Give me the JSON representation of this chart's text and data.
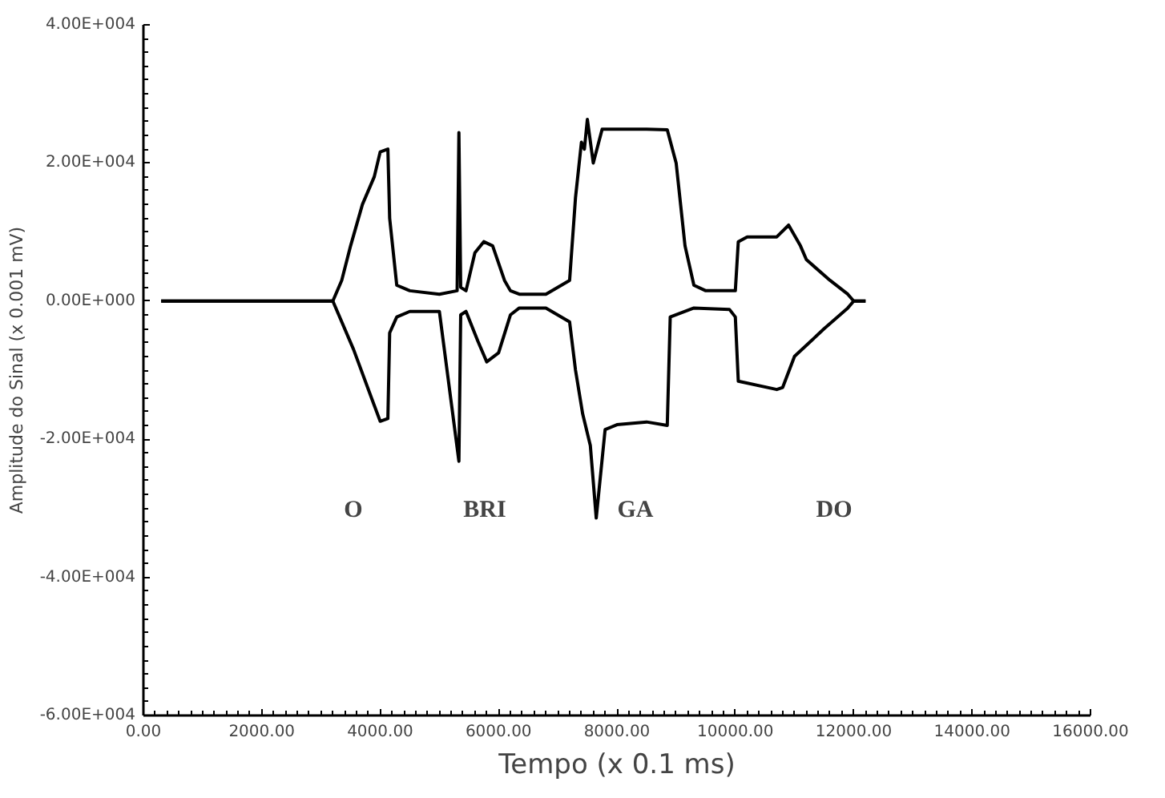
{
  "chart_data": {
    "type": "line",
    "xlabel": "Tempo (x 0.1 ms)",
    "ylabel": "Amplitude do Sinal (x 0.001 mV)",
    "xlim": [
      0,
      16000
    ],
    "ylim": [
      -60000,
      40000
    ],
    "xticks": [
      {
        "value": 0,
        "label": "0.00"
      },
      {
        "value": 2000,
        "label": "2000.00"
      },
      {
        "value": 4000,
        "label": "4000.00"
      },
      {
        "value": 6000,
        "label": "6000.00"
      },
      {
        "value": 8000,
        "label": "8000.00"
      },
      {
        "value": 10000,
        "label": "10000.00"
      },
      {
        "value": 12000,
        "label": "12000.00"
      },
      {
        "value": 14000,
        "label": "14000.00"
      },
      {
        "value": 16000,
        "label": "16000.00"
      }
    ],
    "yticks": [
      {
        "value": -60000,
        "label": "-6.00E+004"
      },
      {
        "value": -40000,
        "label": "-4.00E+004"
      },
      {
        "value": -20000,
        "label": "-2.00E+004"
      },
      {
        "value": 0,
        "label": "0.00E+000"
      },
      {
        "value": 20000,
        "label": "2.00E+004"
      },
      {
        "value": 40000,
        "label": "4.00E+004"
      }
    ],
    "grid": false,
    "marker": "none",
    "line_style": "solid",
    "series": [
      {
        "color": "#000000",
        "x": [
          300,
          3200,
          3350,
          3500,
          3700,
          3900,
          4000,
          4130,
          4160,
          4280,
          4500,
          5000,
          5300,
          5330,
          5360,
          5450,
          5600,
          5750,
          5900,
          6100,
          6200,
          6350,
          6800,
          7200,
          7300,
          7400,
          7450,
          7500,
          7600,
          7750,
          8000,
          8500,
          8850,
          9000,
          9150,
          9300,
          9500,
          10000,
          10050,
          10200,
          10700,
          10900,
          11100,
          11200,
          11600,
          11900,
          12000,
          12200
        ],
        "values": [
          0,
          0,
          3000,
          8000,
          14000,
          18000,
          21600,
          22000,
          12000,
          2300,
          1500,
          1000,
          1500,
          24400,
          2000,
          1500,
          7000,
          8600,
          8000,
          3000,
          1500,
          1000,
          1000,
          3000,
          15000,
          23000,
          22000,
          26300,
          20000,
          24900,
          24900,
          24900,
          24800,
          20000,
          8000,
          2300,
          1500,
          1500,
          8600,
          9300,
          9300,
          11000,
          8000,
          6000,
          3000,
          1000,
          0,
          0
        ]
      },
      {
        "color": "#000000",
        "x": [
          300,
          3200,
          3550,
          3900,
          4000,
          4130,
          4160,
          4280,
          4500,
          5000,
          5330,
          5360,
          5450,
          5650,
          5800,
          6000,
          6200,
          6350,
          6800,
          7200,
          7300,
          7420,
          7550,
          7650,
          7800,
          8000,
          8500,
          8850,
          8900,
          9300,
          9900,
          10000,
          10050,
          10700,
          10800,
          11000,
          11500,
          11900,
          12000,
          12200
        ],
        "values": [
          0,
          0,
          -7000,
          -15100,
          -17400,
          -17000,
          -4600,
          -2300,
          -1500,
          -1500,
          -23200,
          -2000,
          -1500,
          -5800,
          -8800,
          -7500,
          -2000,
          -1000,
          -1000,
          -3000,
          -10000,
          -16300,
          -20900,
          -31400,
          -18600,
          -17900,
          -17500,
          -18000,
          -2300,
          -1000,
          -1200,
          -2300,
          -11600,
          -12800,
          -12500,
          -8000,
          -4000,
          -1000,
          0,
          0
        ]
      }
    ],
    "annotations": [
      "O",
      "BRI",
      "GA",
      "DO"
    ]
  }
}
